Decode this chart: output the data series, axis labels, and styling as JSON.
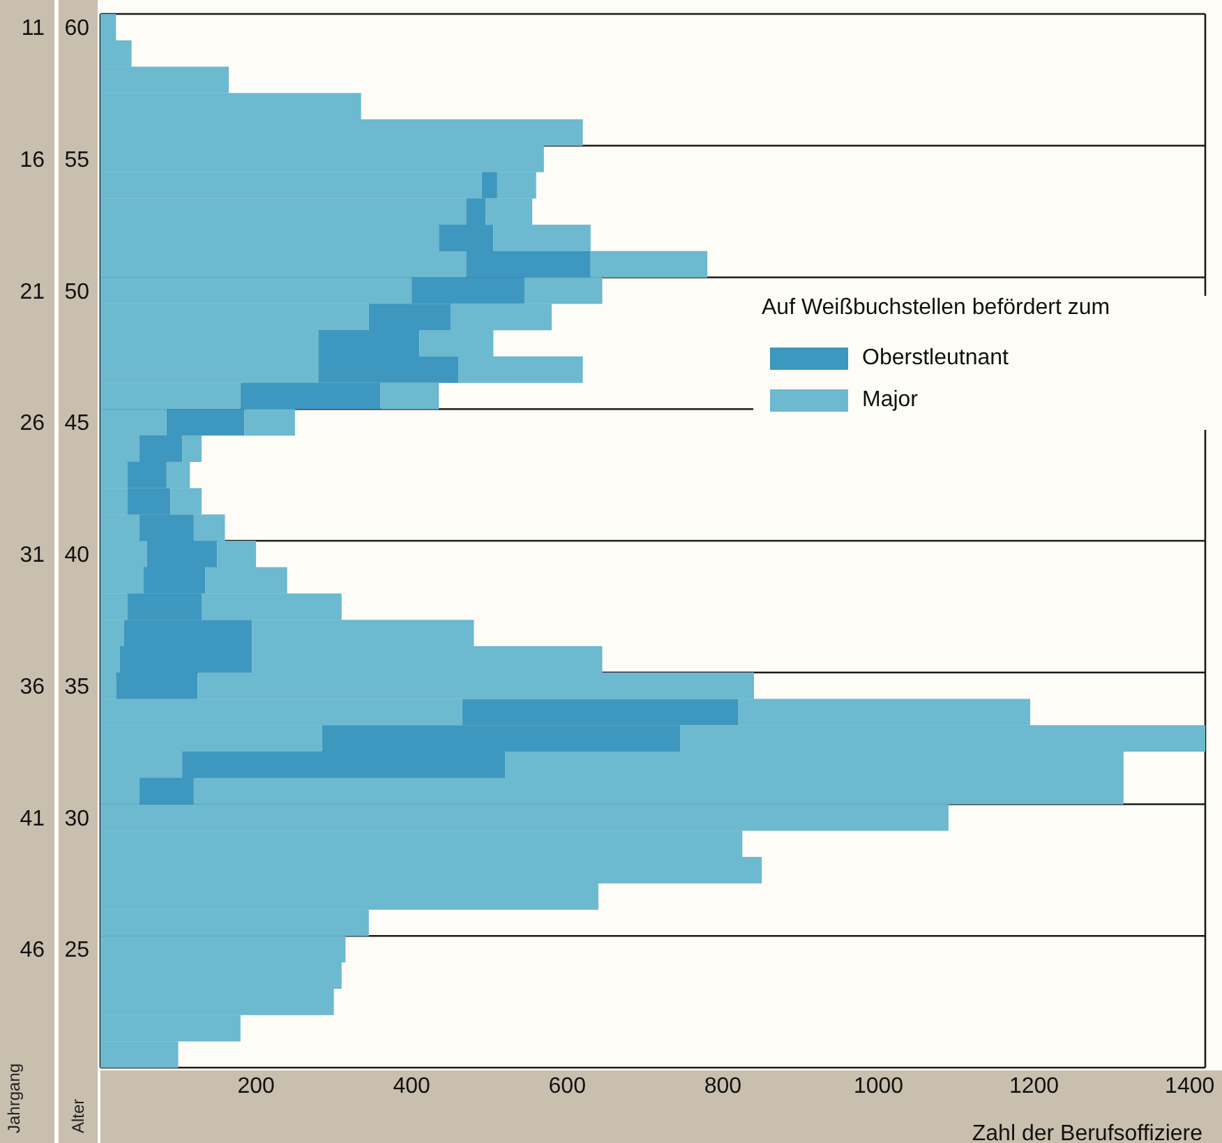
{
  "chart_data": {
    "type": "bar",
    "orientation": "horizontal",
    "stacked": true,
    "grid": true,
    "legend": "right",
    "legend_title": "Auf Weißbuchstellen befördert zum",
    "xlabel": "Zahl der Berufsoffiziere",
    "ylabel": "Alter",
    "y2label": "Jahrgang",
    "categories": [
      "60",
      null,
      null,
      null,
      null,
      "55",
      null,
      null,
      null,
      null,
      "50",
      null,
      null,
      null,
      null,
      "45",
      null,
      null,
      null,
      null,
      "40",
      null,
      null,
      null,
      null,
      "35",
      null,
      null,
      null,
      null,
      "30",
      null,
      null,
      null,
      null,
      "25",
      null,
      null,
      null,
      null
    ],
    "y2_categories": [
      "11",
      null,
      null,
      null,
      null,
      "16",
      null,
      null,
      null,
      null,
      "21",
      null,
      null,
      null,
      null,
      "26",
      null,
      null,
      null,
      null,
      "31",
      null,
      null,
      null,
      null,
      "36",
      null,
      null,
      null,
      null,
      "41",
      null,
      null,
      null,
      null,
      "46",
      null,
      null,
      null,
      null
    ],
    "xlim": [
      0,
      1420
    ],
    "xticks": [
      200,
      400,
      600,
      800,
      1000,
      1200,
      1400
    ],
    "series": [
      {
        "name": "Major",
        "color": "#6cb9d0",
        "values": [
          20,
          40,
          165,
          335,
          620,
          570,
          490,
          470,
          435,
          470,
          400,
          345,
          280,
          280,
          180,
          85,
          50,
          35,
          35,
          50,
          60,
          55,
          35,
          30,
          25,
          20,
          465,
          285,
          105,
          50,
          1090,
          825,
          850,
          640,
          345,
          315,
          310,
          300,
          180,
          100
        ]
      },
      {
        "name": "Oberstleutnant",
        "color": "#3e97bf",
        "values": [
          null,
          null,
          null,
          null,
          null,
          null,
          20,
          25,
          70,
          160,
          145,
          105,
          130,
          180,
          180,
          100,
          55,
          50,
          55,
          70,
          90,
          80,
          95,
          165,
          170,
          105,
          355,
          460,
          415,
          70,
          null,
          null,
          null,
          null,
          null,
          null,
          null,
          null,
          null,
          null
        ]
      },
      {
        "color": "#6cb9d0",
        "values": [
          null,
          null,
          null,
          null,
          null,
          null,
          50,
          60,
          125,
          150,
          100,
          130,
          95,
          160,
          75,
          65,
          25,
          30,
          40,
          40,
          50,
          105,
          180,
          285,
          450,
          715,
          375,
          675,
          795,
          1195,
          null,
          null,
          null,
          null,
          null,
          null,
          null,
          null,
          null,
          null
        ]
      }
    ]
  }
}
